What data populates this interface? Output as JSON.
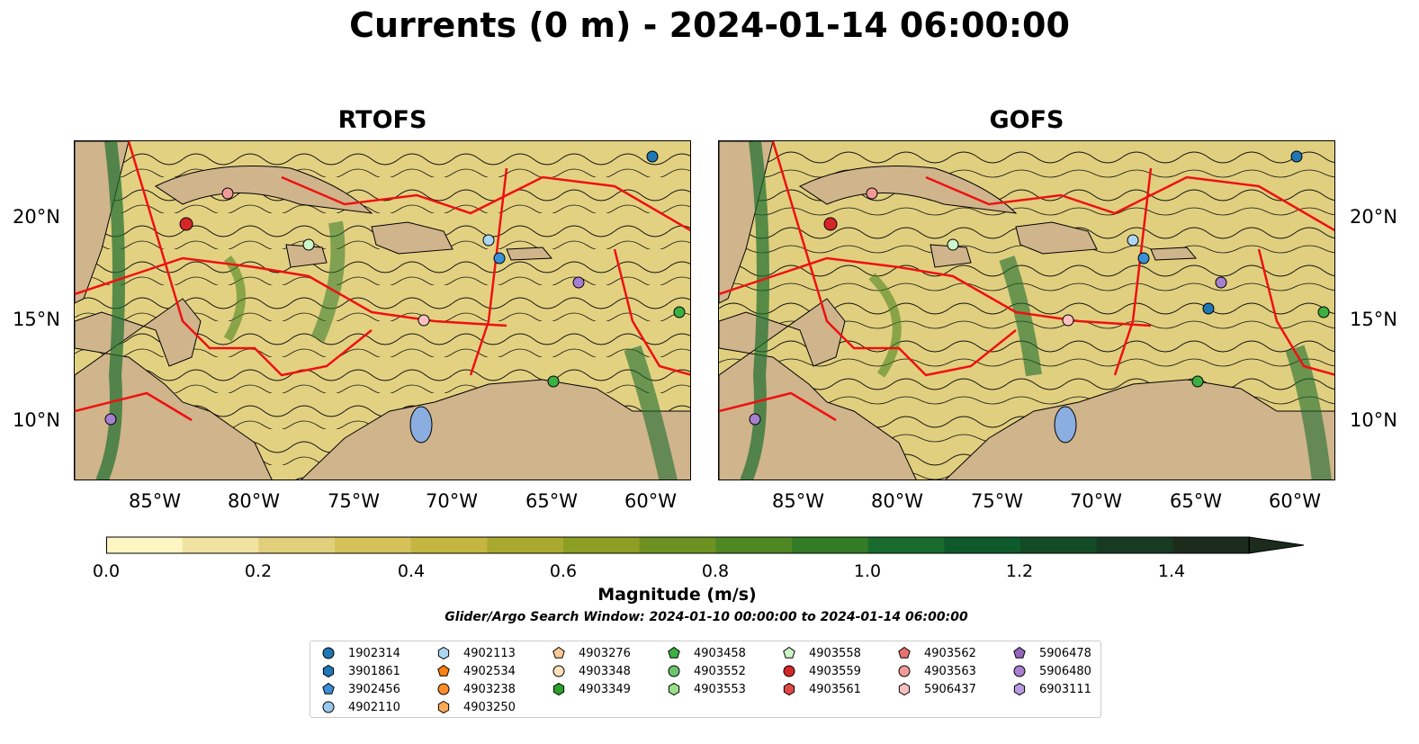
{
  "title": "Currents (0 m) - 2024-01-14 06:00:00",
  "panels": [
    {
      "title": "RTOFS"
    },
    {
      "title": "GOFS"
    }
  ],
  "lat_labels": [
    "20°N",
    "15°N",
    "10°N"
  ],
  "lon_labels": [
    "85°W",
    "80°W",
    "75°W",
    "70°W",
    "65°W",
    "60°W"
  ],
  "colorbar": {
    "label": "Magnitude (m/s)",
    "ticks": [
      "0.0",
      "0.2",
      "0.4",
      "0.6",
      "0.8",
      "1.0",
      "1.2",
      "1.4"
    ],
    "min": 0.0,
    "max": 1.5,
    "extend": "max",
    "colors": [
      "#fdf6c3",
      "#f0e2a0",
      "#e2cf7c",
      "#d6c15a",
      "#c5b541",
      "#a9a930",
      "#8c9e24",
      "#6e9221",
      "#4f8722",
      "#337b26",
      "#186b2d",
      "#0f5a2c",
      "#134b27",
      "#173a22",
      "#1b2c1c"
    ]
  },
  "search_window": "Glider/Argo Search Window: 2024-01-10 00:00:00 to 2024-01-14 06:00:00",
  "legend": [
    {
      "id": "1902314",
      "marker": "circle",
      "color": "#1f77b4"
    },
    {
      "id": "3901861",
      "marker": "hexagon",
      "color": "#1f77b4"
    },
    {
      "id": "3902456",
      "marker": "pentagon",
      "color": "#3a8fd6"
    },
    {
      "id": "4902110",
      "marker": "circle",
      "color": "#9ac8ec"
    },
    {
      "id": "4902113",
      "marker": "hexagon",
      "color": "#aed6f3"
    },
    {
      "id": "4902534",
      "marker": "pentagon",
      "color": "#ff7f0e"
    },
    {
      "id": "4903238",
      "marker": "circle",
      "color": "#ff8c28"
    },
    {
      "id": "4903250",
      "marker": "hexagon",
      "color": "#ffaa55"
    },
    {
      "id": "4903276",
      "marker": "pentagon",
      "color": "#ffc994"
    },
    {
      "id": "4903348",
      "marker": "circle",
      "color": "#ffdfbd"
    },
    {
      "id": "4903349",
      "marker": "hexagon",
      "color": "#2ca02c"
    },
    {
      "id": "4903458",
      "marker": "pentagon",
      "color": "#3cb043"
    },
    {
      "id": "4903552",
      "marker": "circle",
      "color": "#6cc56c"
    },
    {
      "id": "4903553",
      "marker": "hexagon",
      "color": "#98df8a"
    },
    {
      "id": "4903558",
      "marker": "pentagon",
      "color": "#ccf5c8"
    },
    {
      "id": "4903559",
      "marker": "circle",
      "color": "#d62728"
    },
    {
      "id": "4903561",
      "marker": "hexagon",
      "color": "#e04848"
    },
    {
      "id": "4903562",
      "marker": "pentagon",
      "color": "#e8716f"
    },
    {
      "id": "4903563",
      "marker": "circle",
      "color": "#f29a99"
    },
    {
      "id": "5906437",
      "marker": "hexagon",
      "color": "#f8c1bf"
    },
    {
      "id": "5906478",
      "marker": "pentagon",
      "color": "#9467bd"
    },
    {
      "id": "5906480",
      "marker": "circle",
      "color": "#a77fd0"
    },
    {
      "id": "6903111",
      "marker": "hexagon",
      "color": "#b99be0"
    }
  ]
}
